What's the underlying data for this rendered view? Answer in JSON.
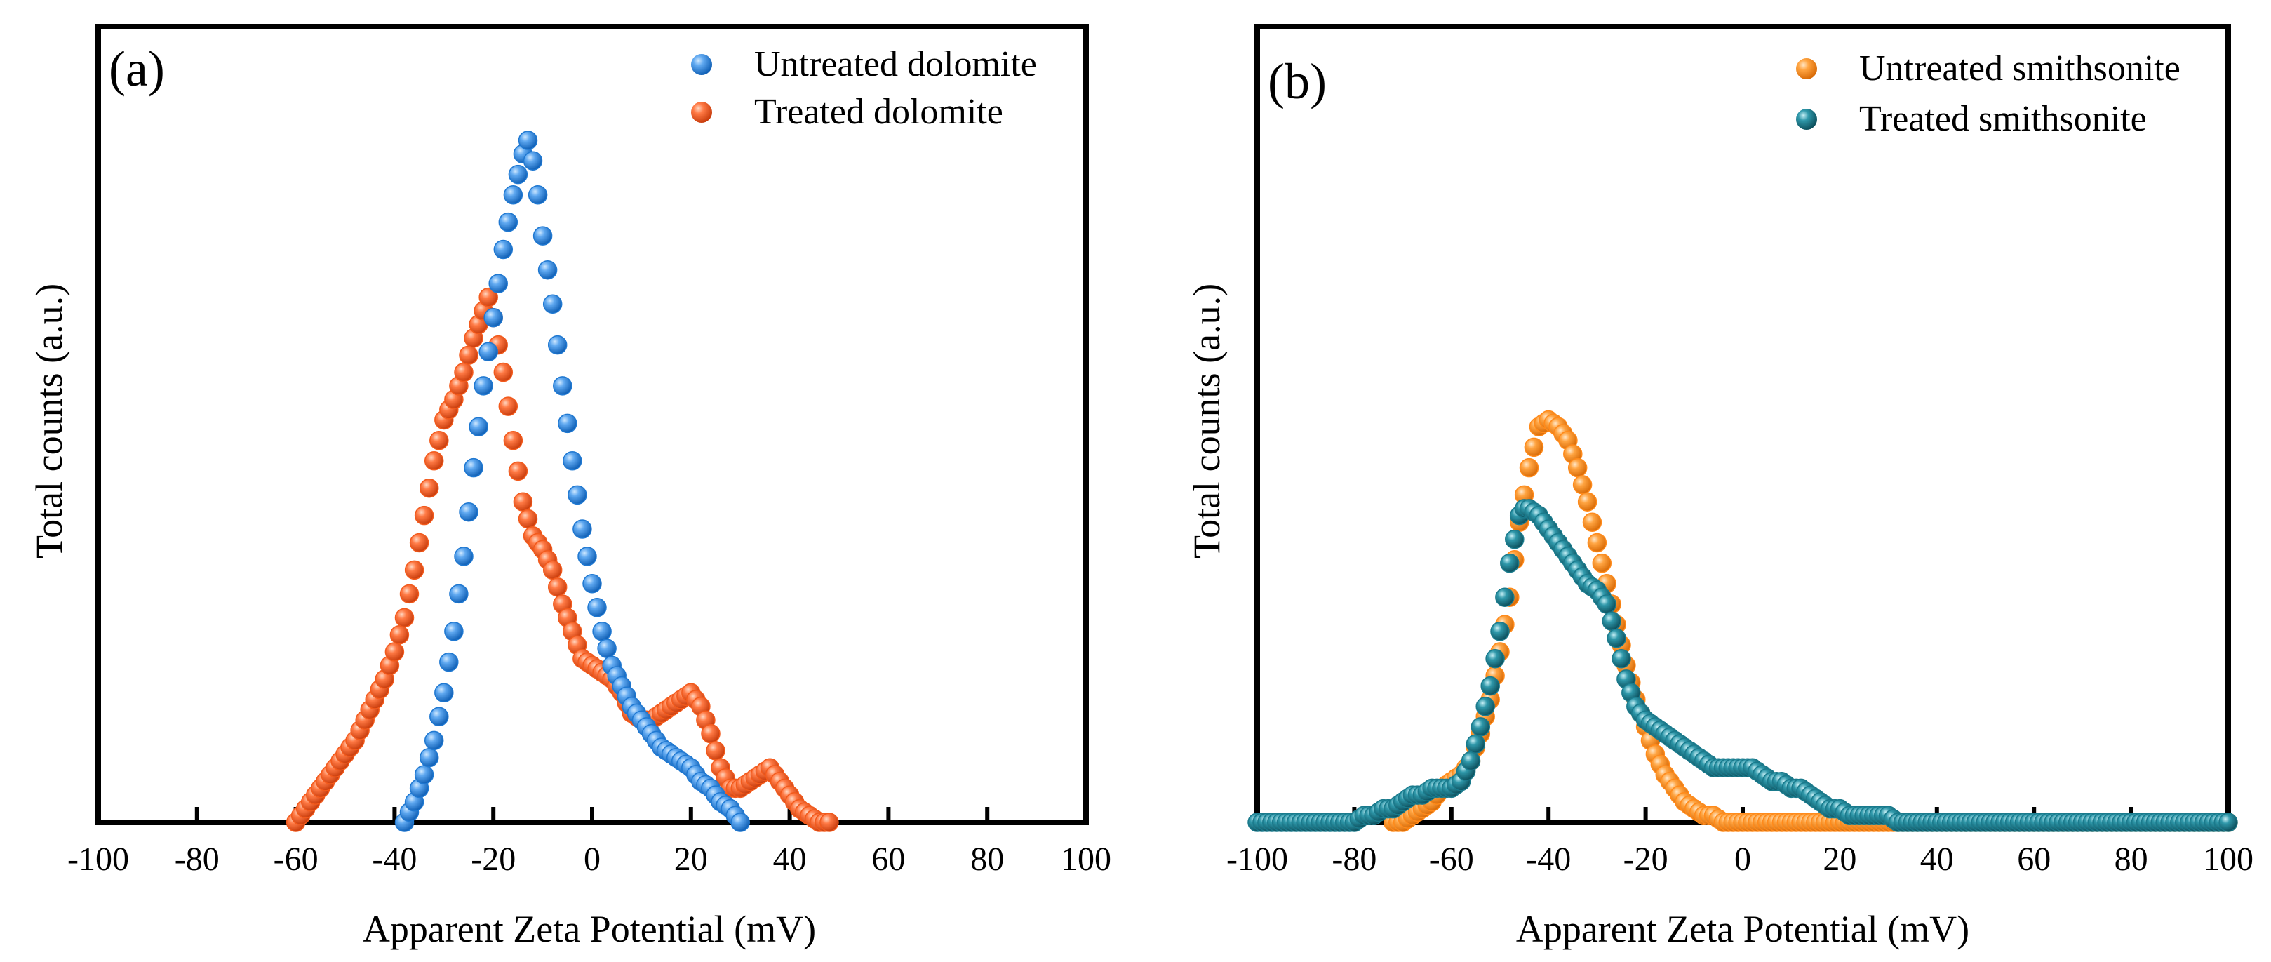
{
  "chart_data": [
    {
      "type": "scatter",
      "panel_label": "(a)",
      "xlabel": "Apparent Zeta Potential (mV)",
      "ylabel": "Total counts (a.u.)",
      "xlim": [
        -100,
        100
      ],
      "ylim": [
        0,
        100
      ],
      "xticks": [
        -100,
        -80,
        -60,
        -40,
        -20,
        0,
        20,
        40,
        60,
        80,
        100
      ],
      "legend_position": "top-right",
      "series": [
        {
          "name": "Untreated dolomite",
          "color": "#1f78d1",
          "points": [
            [
              -38,
              0
            ],
            [
              -36,
              3
            ],
            [
              -34,
              7
            ],
            [
              -32,
              12
            ],
            [
              -30,
              19
            ],
            [
              -28,
              28
            ],
            [
              -26,
              39
            ],
            [
              -24,
              52
            ],
            [
              -22,
              64
            ],
            [
              -20,
              74
            ],
            [
              -18,
              84
            ],
            [
              -16,
              92
            ],
            [
              -14,
              98
            ],
            [
              -13,
              100
            ],
            [
              -12,
              97
            ],
            [
              -11,
              92
            ],
            [
              -10,
              86
            ],
            [
              -8,
              76
            ],
            [
              -6,
              64
            ],
            [
              -4,
              53
            ],
            [
              -2,
              43
            ],
            [
              0,
              35
            ],
            [
              2,
              28
            ],
            [
              4,
              23
            ],
            [
              6,
              20
            ],
            [
              8,
              17
            ],
            [
              10,
              15
            ],
            [
              12,
              13
            ],
            [
              14,
              11
            ],
            [
              16,
              10
            ],
            [
              18,
              9
            ],
            [
              20,
              8
            ],
            [
              22,
              6
            ],
            [
              24,
              5
            ],
            [
              26,
              3
            ],
            [
              28,
              2
            ],
            [
              30,
              0
            ]
          ]
        },
        {
          "name": "Treated dolomite",
          "color": "#f25a1c",
          "points": [
            [
              -60,
              0
            ],
            [
              -58,
              2
            ],
            [
              -56,
              4
            ],
            [
              -54,
              6
            ],
            [
              -52,
              8
            ],
            [
              -50,
              10
            ],
            [
              -48,
              12
            ],
            [
              -46,
              15
            ],
            [
              -44,
              18
            ],
            [
              -42,
              21
            ],
            [
              -40,
              25
            ],
            [
              -38,
              30
            ],
            [
              -36,
              37
            ],
            [
              -34,
              45
            ],
            [
              -32,
              53
            ],
            [
              -30,
              59
            ],
            [
              -28,
              62
            ],
            [
              -26,
              66
            ],
            [
              -24,
              71
            ],
            [
              -22,
              75
            ],
            [
              -21,
              77
            ],
            [
              -20,
              74
            ],
            [
              -18,
              66
            ],
            [
              -16,
              56
            ],
            [
              -14,
              47
            ],
            [
              -12,
              42
            ],
            [
              -10,
              40
            ],
            [
              -8,
              37
            ],
            [
              -6,
              32
            ],
            [
              -4,
              28
            ],
            [
              -2,
              24
            ],
            [
              0,
              23
            ],
            [
              2,
              22
            ],
            [
              4,
              21
            ],
            [
              6,
              19
            ],
            [
              8,
              16
            ],
            [
              10,
              15
            ],
            [
              12,
              15
            ],
            [
              14,
              16
            ],
            [
              16,
              17
            ],
            [
              18,
              18
            ],
            [
              20,
              19
            ],
            [
              22,
              17
            ],
            [
              24,
              13
            ],
            [
              26,
              8
            ],
            [
              28,
              5
            ],
            [
              30,
              5
            ],
            [
              32,
              6
            ],
            [
              34,
              7
            ],
            [
              36,
              8
            ],
            [
              38,
              6
            ],
            [
              40,
              4
            ],
            [
              42,
              2
            ],
            [
              44,
              1
            ],
            [
              46,
              0
            ],
            [
              48,
              0
            ]
          ]
        }
      ]
    },
    {
      "type": "scatter",
      "panel_label": "(b)",
      "xlabel": "Apparent Zeta Potential (mV)",
      "ylabel": "Total counts (a.u.)",
      "xlim": [
        -100,
        100
      ],
      "ylim": [
        0,
        100
      ],
      "xticks": [
        -100,
        -80,
        -60,
        -40,
        -20,
        0,
        20,
        40,
        60,
        80,
        100
      ],
      "legend_position": "top-right",
      "series": [
        {
          "name": "Untreated smithsonite",
          "color": "#ff8a1a",
          "points": [
            [
              -72,
              0
            ],
            [
              -70,
              0
            ],
            [
              -68,
              1
            ],
            [
              -66,
              2
            ],
            [
              -64,
              3
            ],
            [
              -62,
              5
            ],
            [
              -60,
              6
            ],
            [
              -58,
              7
            ],
            [
              -56,
              9
            ],
            [
              -54,
              13
            ],
            [
              -52,
              18
            ],
            [
              -50,
              25
            ],
            [
              -48,
              33
            ],
            [
              -46,
              44
            ],
            [
              -44,
              52
            ],
            [
              -42,
              58
            ],
            [
              -40,
              59
            ],
            [
              -38,
              58
            ],
            [
              -36,
              56
            ],
            [
              -34,
              52
            ],
            [
              -32,
              47
            ],
            [
              -30,
              41
            ],
            [
              -28,
              35
            ],
            [
              -26,
              29
            ],
            [
              -24,
              23
            ],
            [
              -22,
              18
            ],
            [
              -20,
              14
            ],
            [
              -18,
              10
            ],
            [
              -16,
              7
            ],
            [
              -14,
              5
            ],
            [
              -12,
              3
            ],
            [
              -10,
              2
            ],
            [
              -8,
              1
            ],
            [
              -6,
              1
            ],
            [
              -4,
              0
            ],
            [
              -2,
              0
            ],
            [
              0,
              0
            ],
            [
              4,
              0
            ],
            [
              8,
              0
            ],
            [
              12,
              0
            ],
            [
              16,
              0
            ],
            [
              20,
              0
            ],
            [
              24,
              0
            ],
            [
              28,
              0
            ],
            [
              32,
              0
            ],
            [
              36,
              0
            ],
            [
              40,
              0
            ],
            [
              44,
              0
            ],
            [
              48,
              0
            ],
            [
              52,
              0
            ],
            [
              56,
              0
            ],
            [
              60,
              0
            ],
            [
              64,
              0
            ],
            [
              68,
              0
            ],
            [
              72,
              0
            ],
            [
              76,
              0
            ],
            [
              80,
              0
            ],
            [
              84,
              0
            ],
            [
              88,
              0
            ],
            [
              92,
              0
            ],
            [
              96,
              0
            ],
            [
              100,
              0
            ]
          ]
        },
        {
          "name": "Treated smithsonite",
          "color": "#1a7a8c",
          "points": [
            [
              -100,
              0
            ],
            [
              -96,
              0
            ],
            [
              -92,
              0
            ],
            [
              -88,
              0
            ],
            [
              -84,
              0
            ],
            [
              -80,
              0
            ],
            [
              -78,
              1
            ],
            [
              -76,
              1
            ],
            [
              -74,
              2
            ],
            [
              -72,
              2
            ],
            [
              -70,
              3
            ],
            [
              -68,
              4
            ],
            [
              -66,
              4
            ],
            [
              -64,
              5
            ],
            [
              -62,
              5
            ],
            [
              -60,
              5
            ],
            [
              -58,
              6
            ],
            [
              -56,
              9
            ],
            [
              -54,
              14
            ],
            [
              -52,
              20
            ],
            [
              -50,
              28
            ],
            [
              -48,
              38
            ],
            [
              -46,
              45
            ],
            [
              -45,
              46
            ],
            [
              -44,
              46
            ],
            [
              -42,
              45
            ],
            [
              -40,
              43
            ],
            [
              -38,
              41
            ],
            [
              -36,
              39
            ],
            [
              -34,
              37
            ],
            [
              -32,
              35
            ],
            [
              -30,
              34
            ],
            [
              -28,
              32
            ],
            [
              -26,
              27
            ],
            [
              -24,
              21
            ],
            [
              -22,
              17
            ],
            [
              -20,
              15
            ],
            [
              -18,
              14
            ],
            [
              -16,
              13
            ],
            [
              -14,
              12
            ],
            [
              -12,
              11
            ],
            [
              -10,
              10
            ],
            [
              -8,
              9
            ],
            [
              -6,
              8
            ],
            [
              -4,
              8
            ],
            [
              -2,
              8
            ],
            [
              0,
              8
            ],
            [
              2,
              8
            ],
            [
              4,
              7
            ],
            [
              6,
              6
            ],
            [
              8,
              6
            ],
            [
              10,
              5
            ],
            [
              12,
              5
            ],
            [
              14,
              4
            ],
            [
              16,
              3
            ],
            [
              18,
              2
            ],
            [
              20,
              2
            ],
            [
              22,
              1
            ],
            [
              24,
              1
            ],
            [
              26,
              1
            ],
            [
              28,
              1
            ],
            [
              30,
              1
            ],
            [
              32,
              0
            ],
            [
              36,
              0
            ],
            [
              40,
              0
            ],
            [
              44,
              0
            ],
            [
              48,
              0
            ],
            [
              52,
              0
            ],
            [
              56,
              0
            ],
            [
              60,
              0
            ],
            [
              64,
              0
            ],
            [
              68,
              0
            ],
            [
              72,
              0
            ],
            [
              76,
              0
            ],
            [
              80,
              0
            ],
            [
              84,
              0
            ],
            [
              88,
              0
            ],
            [
              92,
              0
            ],
            [
              96,
              0
            ],
            [
              100,
              0
            ]
          ]
        }
      ]
    }
  ]
}
